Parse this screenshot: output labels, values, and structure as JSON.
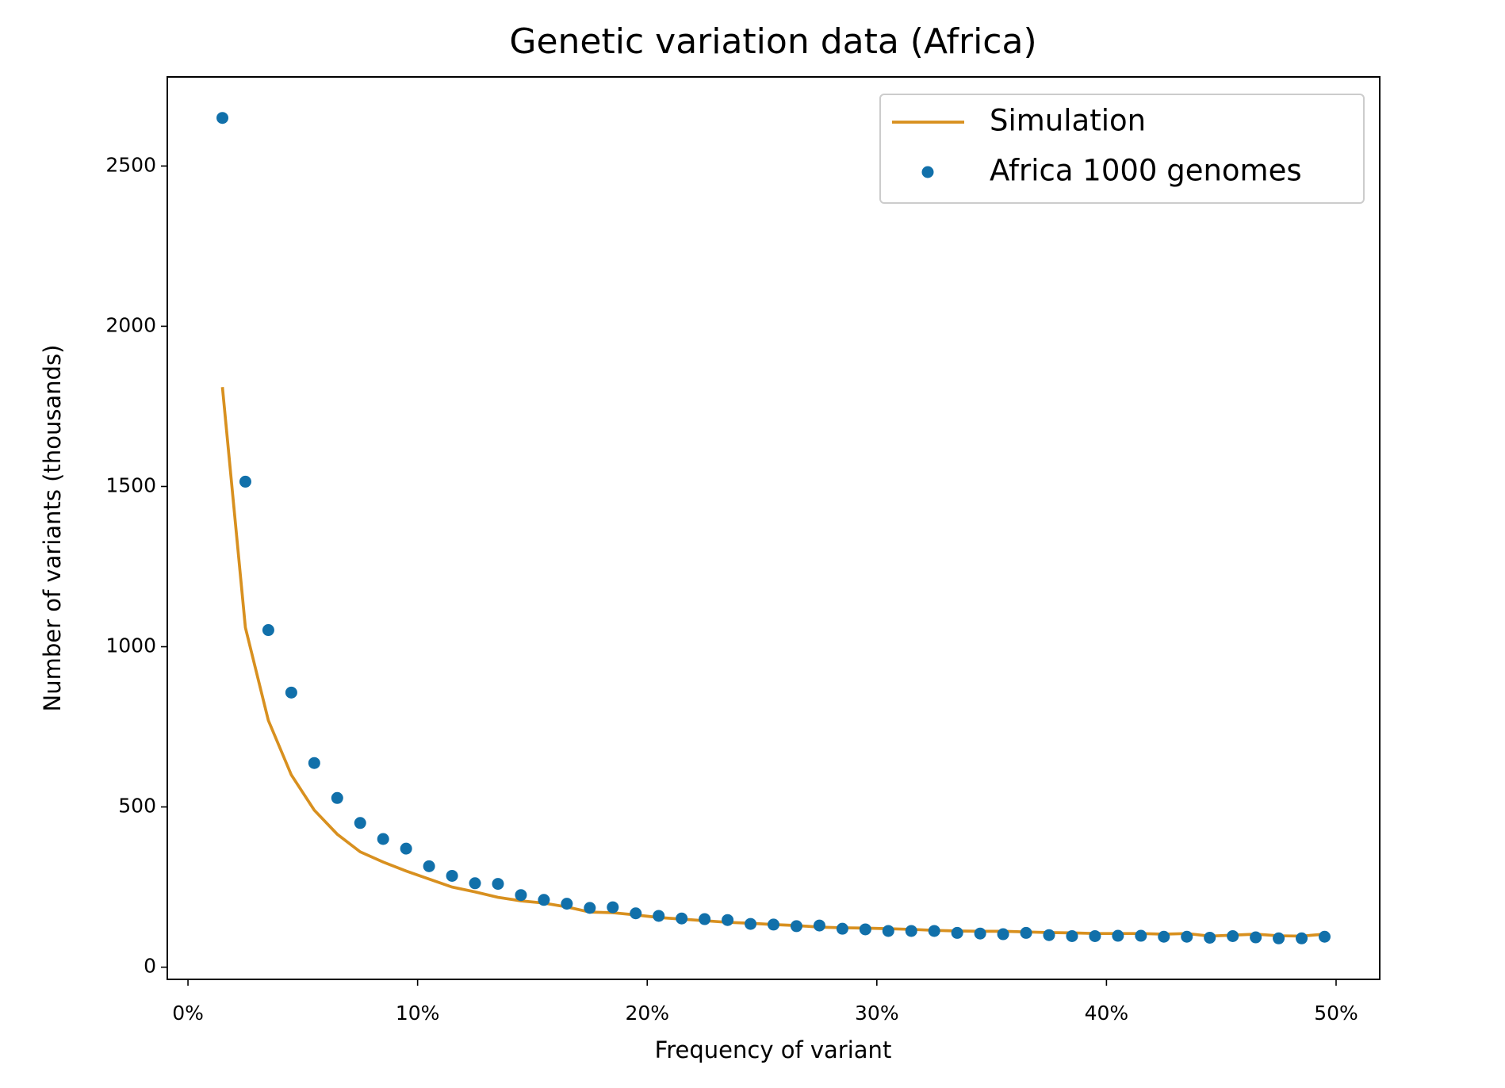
{
  "chart_data": {
    "type": "line",
    "title": "Genetic variation data (Africa)",
    "x_label": "Frequency of variant",
    "y_label": "Number of variants (thousands)",
    "x": [
      1.5,
      2.5,
      3.5,
      4.5,
      5.5,
      6.5,
      7.5,
      8.5,
      9.5,
      10.5,
      11.5,
      12.5,
      13.5,
      14.5,
      15.5,
      16.5,
      17.5,
      18.5,
      19.5,
      20.5,
      21.5,
      22.5,
      23.5,
      24.5,
      25.5,
      26.5,
      27.5,
      28.5,
      29.5,
      30.5,
      31.5,
      32.5,
      33.5,
      34.5,
      35.5,
      36.5,
      37.5,
      38.5,
      39.5,
      40.5,
      41.5,
      42.5,
      43.5,
      44.5,
      45.5,
      46.5,
      47.5,
      48.5,
      49.5
    ],
    "series": [
      {
        "name": "Simulation",
        "type": "line",
        "color": "#d8901f",
        "values": [
          1810,
          1060,
          770,
          600,
          490,
          415,
          360,
          328,
          300,
          275,
          250,
          235,
          218,
          207,
          200,
          188,
          172,
          170,
          163,
          155,
          150,
          145,
          140,
          137,
          133,
          130,
          125,
          123,
          122,
          120,
          118,
          115,
          113,
          112,
          112,
          110,
          108,
          107,
          105,
          105,
          105,
          103,
          105,
          97,
          100,
          103,
          98,
          97,
          103
        ]
      },
      {
        "name": "Africa 1000 genomes",
        "type": "scatter",
        "color": "#1170aa",
        "values": [
          2650,
          1515,
          1052,
          857,
          637,
          528,
          450,
          400,
          370,
          315,
          285,
          262,
          260,
          225,
          210,
          198,
          185,
          187,
          168,
          160,
          152,
          150,
          147,
          135,
          133,
          128,
          130,
          120,
          118,
          113,
          113,
          113,
          107,
          105,
          103,
          107,
          100,
          97,
          97,
          98,
          98,
          95,
          95,
          92,
          97,
          93,
          90,
          90,
          95
        ]
      }
    ],
    "xlim": [
      -0.9,
      51.9
    ],
    "ylim": [
      -38,
      2778
    ],
    "xticks": [
      {
        "value": 0,
        "label": "0%"
      },
      {
        "value": 10,
        "label": "10%"
      },
      {
        "value": 20,
        "label": "20%"
      },
      {
        "value": 30,
        "label": "30%"
      },
      {
        "value": 40,
        "label": "40%"
      },
      {
        "value": 50,
        "label": "50%"
      }
    ],
    "yticks": [
      0,
      500,
      1000,
      1500,
      2000,
      2500
    ],
    "grid": false,
    "legend": "upper right"
  }
}
